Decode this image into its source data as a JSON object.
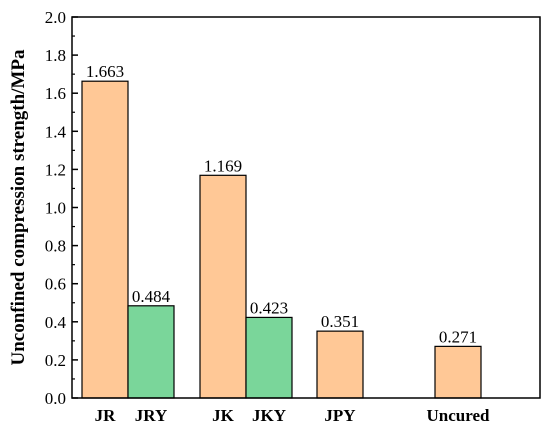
{
  "chart_data": {
    "type": "bar",
    "title": "",
    "xlabel": "",
    "ylabel": "Unconfined compression strength/MPa",
    "ylim": [
      0,
      2.0
    ],
    "yticks": [
      "0.0",
      "0.2",
      "0.4",
      "0.6",
      "0.8",
      "1.0",
      "1.2",
      "1.4",
      "1.6",
      "1.8",
      "2.0"
    ],
    "grid": false,
    "legend": "none",
    "colors": {
      "orange": "#FFC896",
      "green": "#7AD69A",
      "edge": "#000000"
    },
    "bars": [
      {
        "category": "JR",
        "value": 1.663,
        "label": "1.663",
        "color": "orange"
      },
      {
        "category": "JRY",
        "value": 0.484,
        "label": "0.484",
        "color": "green"
      },
      {
        "category": "JK",
        "value": 1.169,
        "label": "1.169",
        "color": "orange"
      },
      {
        "category": "JKY",
        "value": 0.423,
        "label": "0.423",
        "color": "green"
      },
      {
        "category": "JPY",
        "value": 0.351,
        "label": "0.351",
        "color": "orange"
      },
      {
        "category": "Uncured",
        "value": 0.271,
        "label": "0.271",
        "color": "orange"
      }
    ]
  }
}
